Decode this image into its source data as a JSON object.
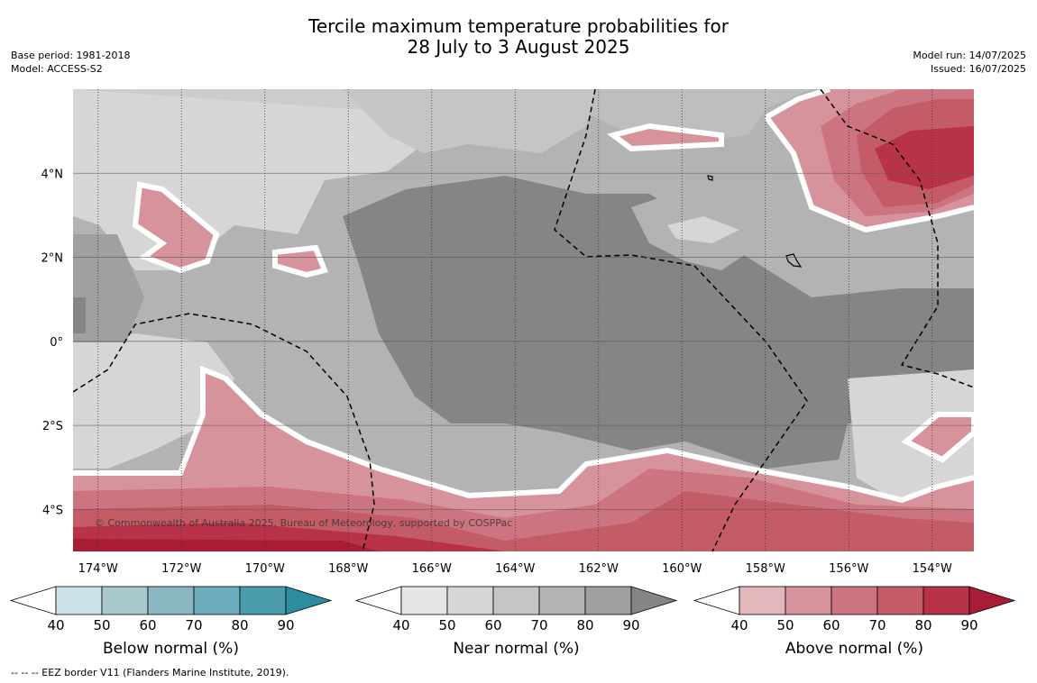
{
  "title_line1": "Tercile maximum temperature probabilities for",
  "title_line2": "28 July to 3 August 2025",
  "base_period": "Base period: 1981-2018",
  "model": "Model: ACCESS-S2",
  "model_run": "Model run: 14/07/2025",
  "issued": "Issued: 16/07/2025",
  "map": {
    "lat_labels": [
      "4°N",
      "2°N",
      "0°",
      "2°S",
      "4°S"
    ],
    "lon_labels": [
      "174°W",
      "172°W",
      "170°W",
      "168°W",
      "166°W",
      "164°W",
      "162°W",
      "160°W",
      "158°W",
      "156°W",
      "154°W"
    ],
    "copyright": "© Commonwealth of Australia 2025, Bureau of Meteorology, supported by COSPPac",
    "extent": {
      "lon_min": -174.6,
      "lon_max": -153.0,
      "lat_min": -5.0,
      "lat_max": 6.0
    }
  },
  "colors": {
    "below": [
      "#cde2e8",
      "#a9c8cd",
      "#8bb7c3",
      "#6dacba",
      "#4a9cac",
      "#2a8ea0"
    ],
    "near": [
      "#e6e6e6",
      "#d6d6d6",
      "#c5c5c5",
      "#b3b3b3",
      "#a0a0a0",
      "#858585"
    ],
    "above": [
      "#e2b8bd",
      "#d7939b",
      "#cc747f",
      "#c45c68",
      "#b83348",
      "#a91c36"
    ]
  },
  "legends": [
    {
      "label": "Below normal (%)",
      "ticks": [
        "40",
        "50",
        "60",
        "70",
        "80",
        "90"
      ],
      "palette": "below"
    },
    {
      "label": "Near normal (%)",
      "ticks": [
        "40",
        "50",
        "60",
        "70",
        "80",
        "90"
      ],
      "palette": "near"
    },
    {
      "label": "Above normal (%)",
      "ticks": [
        "40",
        "50",
        "60",
        "70",
        "80",
        "90"
      ],
      "palette": "above"
    }
  ],
  "footnote": "--  --  -- EEZ border V11 (Flanders Marine Institute, 2019)."
}
